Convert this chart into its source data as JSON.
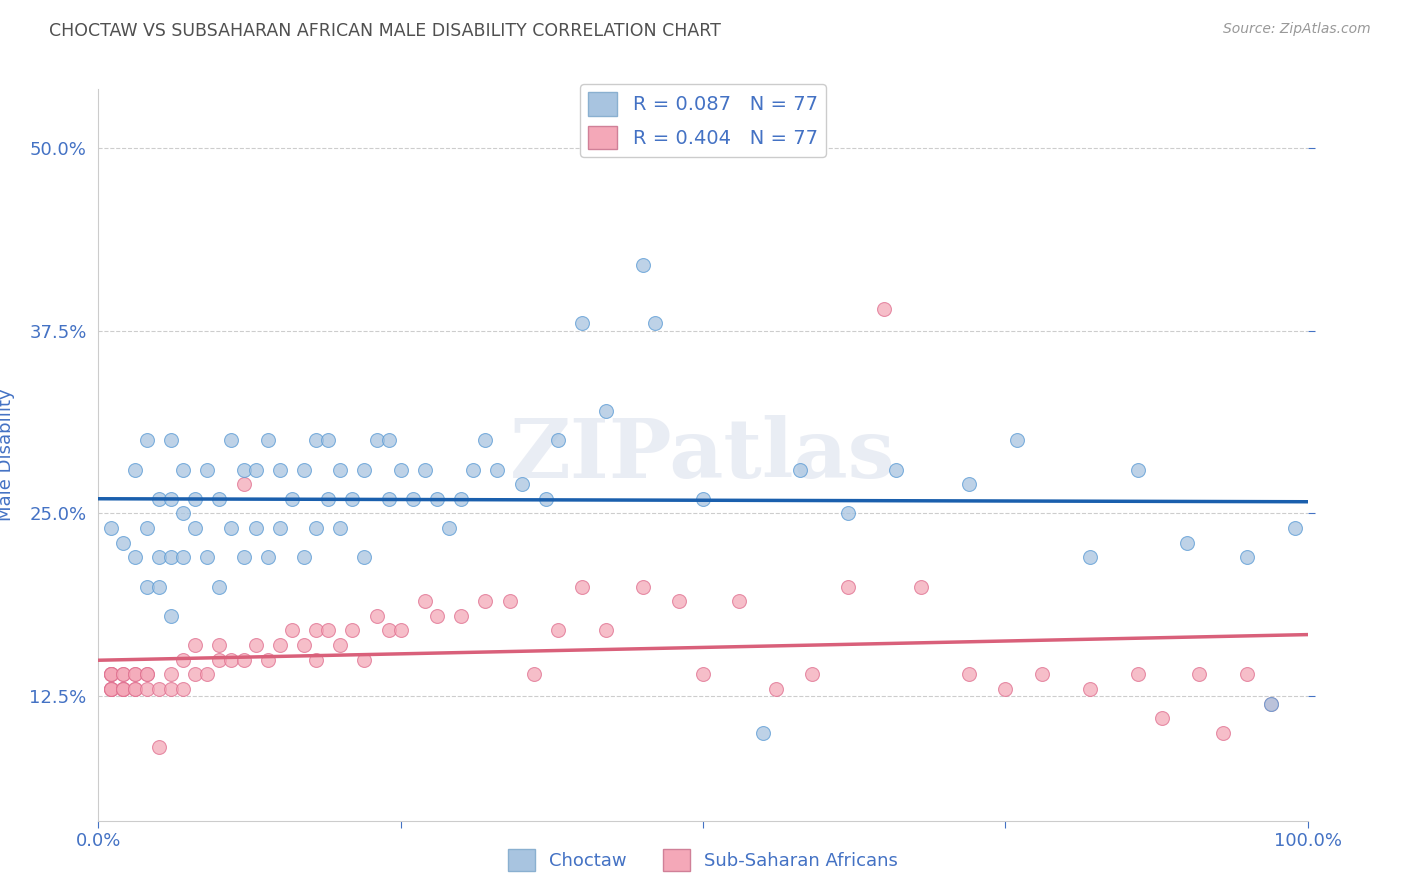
{
  "title": "CHOCTAW VS SUBSAHARAN AFRICAN MALE DISABILITY CORRELATION CHART",
  "source": "Source: ZipAtlas.com",
  "ylabel": "Male Disability",
  "x_min": 0.0,
  "x_max": 1.0,
  "y_min": 0.04,
  "y_max": 0.54,
  "y_ticks": [
    0.125,
    0.25,
    0.375,
    0.5
  ],
  "y_tick_labels": [
    "12.5%",
    "25.0%",
    "37.5%",
    "50.0%"
  ],
  "choctaw_color": "#a8c4e0",
  "choctaw_edge": "#5b9bd5",
  "subsaharan_color": "#f4a8b8",
  "subsaharan_edge": "#e07090",
  "trend_choctaw_color": "#1a5fad",
  "trend_subsaharan_color": "#d9607a",
  "R_choctaw": 0.087,
  "N_choctaw": 77,
  "R_subsaharan": 0.404,
  "N_subsaharan": 77,
  "watermark": "ZIPatlas",
  "background_color": "#ffffff",
  "grid_color": "#c8c8c8",
  "title_color": "#505050",
  "tick_label_color": "#4472c4",
  "choctaw_x": [
    0.01,
    0.02,
    0.03,
    0.03,
    0.04,
    0.04,
    0.04,
    0.05,
    0.05,
    0.05,
    0.06,
    0.06,
    0.06,
    0.06,
    0.07,
    0.07,
    0.07,
    0.08,
    0.08,
    0.09,
    0.09,
    0.1,
    0.1,
    0.11,
    0.11,
    0.12,
    0.12,
    0.13,
    0.13,
    0.14,
    0.14,
    0.15,
    0.15,
    0.16,
    0.17,
    0.17,
    0.18,
    0.18,
    0.19,
    0.19,
    0.2,
    0.2,
    0.21,
    0.22,
    0.22,
    0.23,
    0.24,
    0.24,
    0.25,
    0.26,
    0.27,
    0.28,
    0.29,
    0.3,
    0.31,
    0.32,
    0.33,
    0.35,
    0.37,
    0.38,
    0.4,
    0.42,
    0.45,
    0.46,
    0.5,
    0.55,
    0.58,
    0.62,
    0.66,
    0.72,
    0.76,
    0.82,
    0.86,
    0.9,
    0.95,
    0.97,
    0.99
  ],
  "choctaw_y": [
    0.24,
    0.23,
    0.22,
    0.28,
    0.2,
    0.24,
    0.3,
    0.2,
    0.22,
    0.26,
    0.18,
    0.22,
    0.26,
    0.3,
    0.22,
    0.25,
    0.28,
    0.24,
    0.26,
    0.22,
    0.28,
    0.2,
    0.26,
    0.24,
    0.3,
    0.22,
    0.28,
    0.24,
    0.28,
    0.22,
    0.3,
    0.24,
    0.28,
    0.26,
    0.22,
    0.28,
    0.24,
    0.3,
    0.26,
    0.3,
    0.24,
    0.28,
    0.26,
    0.22,
    0.28,
    0.3,
    0.26,
    0.3,
    0.28,
    0.26,
    0.28,
    0.26,
    0.24,
    0.26,
    0.28,
    0.3,
    0.28,
    0.27,
    0.26,
    0.3,
    0.38,
    0.32,
    0.42,
    0.38,
    0.26,
    0.1,
    0.28,
    0.25,
    0.28,
    0.27,
    0.3,
    0.22,
    0.28,
    0.23,
    0.22,
    0.12,
    0.24
  ],
  "subsaharan_x": [
    0.01,
    0.01,
    0.01,
    0.01,
    0.01,
    0.01,
    0.01,
    0.01,
    0.02,
    0.02,
    0.02,
    0.02,
    0.02,
    0.02,
    0.03,
    0.03,
    0.03,
    0.03,
    0.04,
    0.04,
    0.04,
    0.05,
    0.05,
    0.06,
    0.06,
    0.07,
    0.07,
    0.08,
    0.08,
    0.09,
    0.1,
    0.1,
    0.11,
    0.12,
    0.12,
    0.13,
    0.14,
    0.15,
    0.16,
    0.17,
    0.18,
    0.18,
    0.19,
    0.2,
    0.21,
    0.22,
    0.23,
    0.24,
    0.25,
    0.27,
    0.28,
    0.3,
    0.32,
    0.34,
    0.36,
    0.38,
    0.4,
    0.42,
    0.45,
    0.48,
    0.5,
    0.53,
    0.56,
    0.59,
    0.62,
    0.65,
    0.68,
    0.72,
    0.75,
    0.78,
    0.82,
    0.86,
    0.88,
    0.91,
    0.93,
    0.95,
    0.97
  ],
  "subsaharan_y": [
    0.13,
    0.13,
    0.13,
    0.13,
    0.14,
    0.14,
    0.14,
    0.14,
    0.13,
    0.13,
    0.13,
    0.13,
    0.14,
    0.14,
    0.13,
    0.13,
    0.14,
    0.14,
    0.13,
    0.14,
    0.14,
    0.13,
    0.09,
    0.13,
    0.14,
    0.13,
    0.15,
    0.14,
    0.16,
    0.14,
    0.15,
    0.16,
    0.15,
    0.15,
    0.27,
    0.16,
    0.15,
    0.16,
    0.17,
    0.16,
    0.15,
    0.17,
    0.17,
    0.16,
    0.17,
    0.15,
    0.18,
    0.17,
    0.17,
    0.19,
    0.18,
    0.18,
    0.19,
    0.19,
    0.14,
    0.17,
    0.2,
    0.17,
    0.2,
    0.19,
    0.14,
    0.19,
    0.13,
    0.14,
    0.2,
    0.39,
    0.2,
    0.14,
    0.13,
    0.14,
    0.13,
    0.14,
    0.11,
    0.14,
    0.1,
    0.14,
    0.12
  ]
}
